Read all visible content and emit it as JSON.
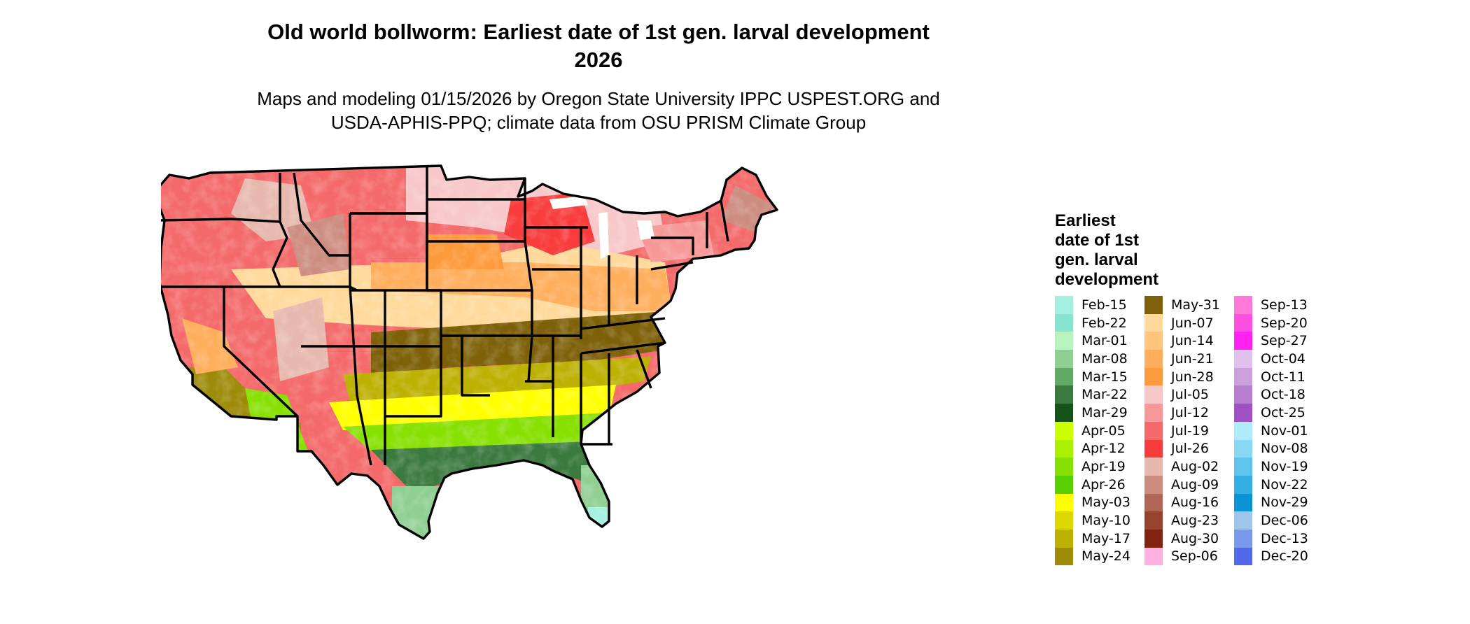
{
  "title_line1": "Old world bollworm: Earliest date of 1st gen. larval development",
  "title_line2": "2026",
  "subtitle_line1": "Maps and modeling 01/15/2026 by Oregon State University IPPC USPEST.ORG and",
  "subtitle_line2": "USDA-APHIS-PPQ; climate data from OSU PRISM Climate Group",
  "legend": {
    "title_lines": [
      "Earliest",
      "date of 1st",
      "gen. larval",
      "development"
    ],
    "columns": [
      [
        {
          "label": "Feb-15",
          "color": "#a5f1e1"
        },
        {
          "label": "Feb-22",
          "color": "#86e4cf"
        },
        {
          "label": "Mar-01",
          "color": "#b9f3c0"
        },
        {
          "label": "Mar-08",
          "color": "#8fcf92"
        },
        {
          "label": "Mar-15",
          "color": "#62a867"
        },
        {
          "label": "Mar-22",
          "color": "#3b7a3f"
        },
        {
          "label": "Mar-29",
          "color": "#175318"
        },
        {
          "label": "Apr-05",
          "color": "#ccff00"
        },
        {
          "label": "Apr-12",
          "color": "#aaf000"
        },
        {
          "label": "Apr-19",
          "color": "#86e000"
        },
        {
          "label": "Apr-26",
          "color": "#58d000"
        },
        {
          "label": "May-03",
          "color": "#ffff00"
        },
        {
          "label": "May-10",
          "color": "#dcd800"
        },
        {
          "label": "May-17",
          "color": "#bcb000"
        },
        {
          "label": "May-24",
          "color": "#9c8a08"
        }
      ],
      [
        {
          "label": "May-31",
          "color": "#7d6008"
        },
        {
          "label": "Jun-07",
          "color": "#ffd99b"
        },
        {
          "label": "Jun-14",
          "color": "#ffc57c"
        },
        {
          "label": "Jun-21",
          "color": "#ffae5c"
        },
        {
          "label": "Jun-28",
          "color": "#fd9a3b"
        },
        {
          "label": "Jul-05",
          "color": "#f7c7c9"
        },
        {
          "label": "Jul-12",
          "color": "#f69898"
        },
        {
          "label": "Jul-19",
          "color": "#f46a6a"
        },
        {
          "label": "Jul-26",
          "color": "#f83b3b"
        },
        {
          "label": "Aug-02",
          "color": "#e7b8ad"
        },
        {
          "label": "Aug-09",
          "color": "#cc8c80"
        },
        {
          "label": "Aug-16",
          "color": "#b26656"
        },
        {
          "label": "Aug-23",
          "color": "#98432f"
        },
        {
          "label": "Aug-30",
          "color": "#822210"
        },
        {
          "label": "Sep-06",
          "color": "#ffb0e0"
        }
      ],
      [
        {
          "label": "Sep-13",
          "color": "#ff7ad8"
        },
        {
          "label": "Sep-20",
          "color": "#ff4fe0"
        },
        {
          "label": "Sep-27",
          "color": "#ff22f0"
        },
        {
          "label": "Oct-04",
          "color": "#e0c0ec"
        },
        {
          "label": "Oct-11",
          "color": "#cca0dc"
        },
        {
          "label": "Oct-18",
          "color": "#b67ed0"
        },
        {
          "label": "Oct-25",
          "color": "#a052c4"
        },
        {
          "label": "Nov-01",
          "color": "#b0ebfc"
        },
        {
          "label": "Nov-08",
          "color": "#88d8f4"
        },
        {
          "label": "Nov-19",
          "color": "#5ec4ec"
        },
        {
          "label": "Nov-22",
          "color": "#34aee2"
        },
        {
          "label": "Nov-29",
          "color": "#0a94d6"
        },
        {
          "label": "Dec-06",
          "color": "#a0c4ec"
        },
        {
          "label": "Dec-13",
          "color": "#7c98ec"
        },
        {
          "label": "Dec-20",
          "color": "#5468ec"
        }
      ]
    ]
  }
}
